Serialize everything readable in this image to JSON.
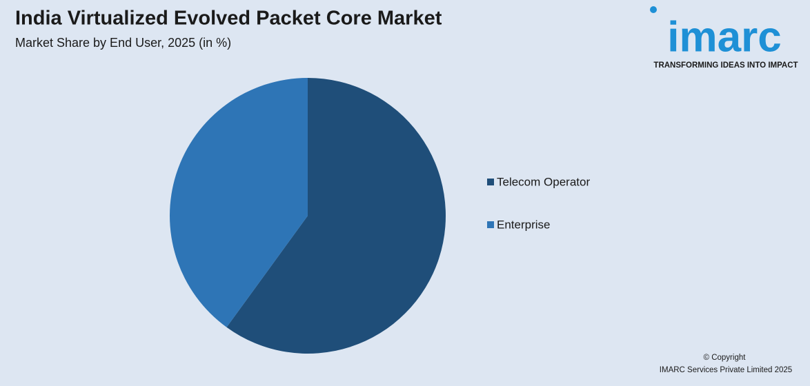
{
  "chart_data": {
    "type": "pie",
    "title": "India Virtualized Evolved Packet Core Market",
    "subtitle": "Market Share by End User, 2025 (in %)",
    "categories": [
      "Telecom Operator",
      "Enterprise"
    ],
    "values": [
      60,
      40
    ],
    "colors": [
      "#1f4e79",
      "#2e75b6"
    ],
    "legend": "right"
  },
  "logo": {
    "name": "imarc",
    "tagline": "TRANSFORMING IDEAS INTO IMPACT"
  },
  "footer": {
    "copyright": "© Copyright",
    "company": "IMARC Services Private Limited  2025"
  }
}
